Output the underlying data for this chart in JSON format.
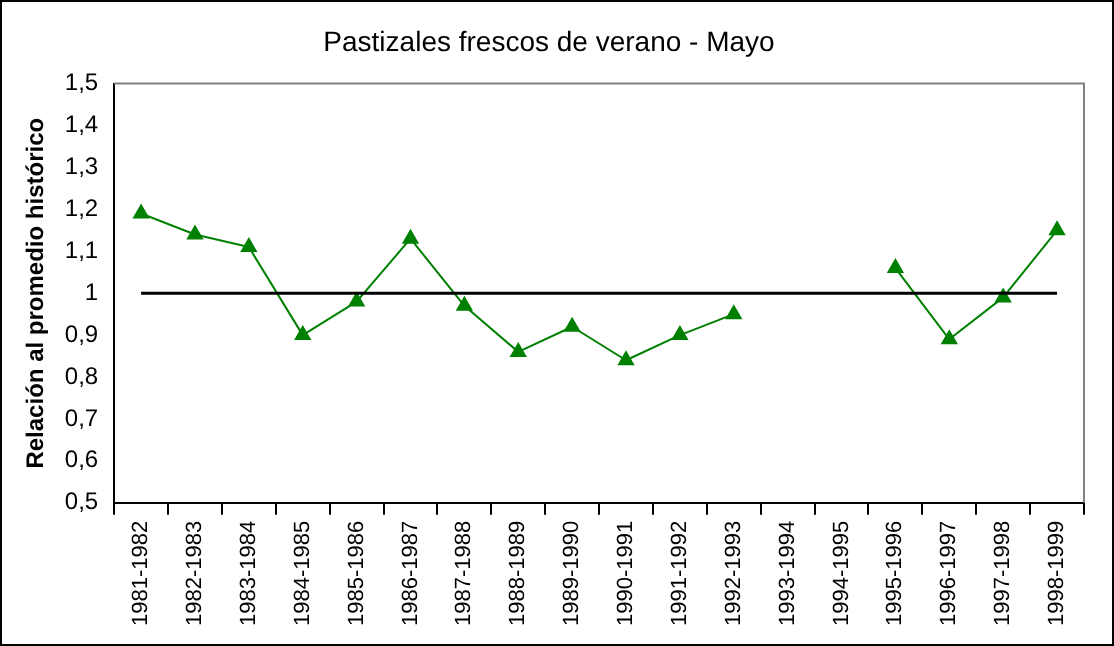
{
  "chart_data": {
    "type": "line",
    "title": "Pastizales frescos de verano - Mayo",
    "ylabel": "Relación al promedio histórico",
    "categories": [
      "1981-1982",
      "1982-1983",
      "1983-1984",
      "1984-1985",
      "1985-1986",
      "1986-1987",
      "1987-1988",
      "1988-1989",
      "1989-1990",
      "1990-1991",
      "1991-1992",
      "1992-1993",
      "1993-1994",
      "1994-1995",
      "1995-1996",
      "1996-1997",
      "1997-1998",
      "1998-1999"
    ],
    "series": [
      {
        "color": "#008000",
        "values": [
          1.19,
          1.14,
          1.11,
          0.9,
          0.98,
          1.13,
          0.97,
          0.86,
          0.92,
          0.84,
          0.9,
          0.95,
          null,
          null,
          1.06,
          0.89,
          0.99,
          1.15
        ]
      }
    ],
    "ylim": [
      0.5,
      1.5
    ],
    "yticks": [
      {
        "value": 0.5,
        "label": "0,5"
      },
      {
        "value": 0.6,
        "label": "0,6"
      },
      {
        "value": 0.7,
        "label": "0,7"
      },
      {
        "value": 0.8,
        "label": "0,8"
      },
      {
        "value": 0.9,
        "label": "0,9"
      },
      {
        "value": 1,
        "label": "1"
      },
      {
        "value": 1.1,
        "label": "1,1"
      },
      {
        "value": 1.2,
        "label": "1,2"
      },
      {
        "value": 1.3,
        "label": "1,3"
      },
      {
        "value": 1.4,
        "label": "1,4"
      },
      {
        "value": 1.5,
        "label": "1,5"
      }
    ],
    "ref_lines": [
      {
        "axis": "y",
        "value": 1,
        "color": "#000000"
      }
    ],
    "marker": "triangle",
    "line_style": "solid",
    "grid": false,
    "legend": false
  }
}
